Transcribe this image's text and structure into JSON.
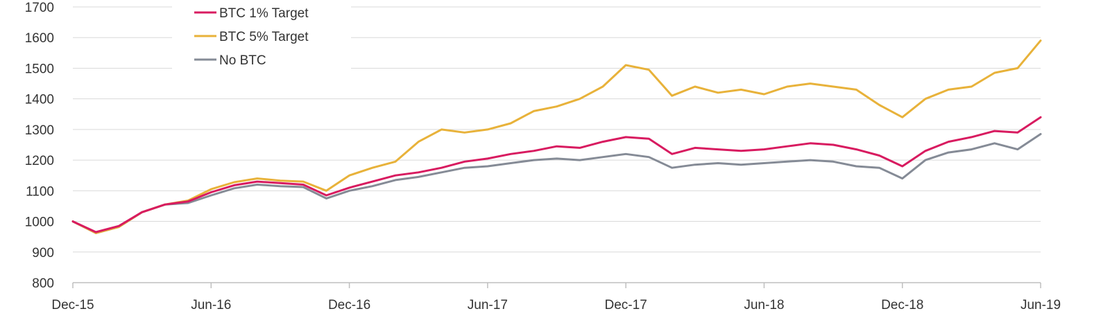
{
  "chart_data": {
    "type": "line",
    "title": "",
    "xlabel": "",
    "ylabel": "",
    "ylim": [
      800,
      1700
    ],
    "yticks": [
      800,
      900,
      1000,
      1100,
      1200,
      1300,
      1400,
      1500,
      1600,
      1700
    ],
    "xlim": [
      "2015-12",
      "2019-06"
    ],
    "xtick_labels": [
      "Dec-15",
      "Jun-16",
      "Dec-16",
      "Jun-17",
      "Dec-17",
      "Jun-18",
      "Dec-18",
      "Jun-19"
    ],
    "grid": "horizontal",
    "legend_position": "top-left",
    "series": [
      {
        "name": "BTC 1% Target",
        "color": "#d81b60",
        "x": [
          "2015-12",
          "2016-01",
          "2016-02",
          "2016-03",
          "2016-04",
          "2016-05",
          "2016-06",
          "2016-07",
          "2016-08",
          "2016-09",
          "2016-10",
          "2016-11",
          "2016-12",
          "2017-01",
          "2017-02",
          "2017-03",
          "2017-04",
          "2017-05",
          "2017-06",
          "2017-07",
          "2017-08",
          "2017-09",
          "2017-10",
          "2017-11",
          "2017-12",
          "2018-01",
          "2018-02",
          "2018-03",
          "2018-04",
          "2018-05",
          "2018-06",
          "2018-07",
          "2018-08",
          "2018-09",
          "2018-10",
          "2018-11",
          "2018-12",
          "2019-01",
          "2019-02",
          "2019-03",
          "2019-04",
          "2019-05",
          "2019-06"
        ],
        "values": [
          1000,
          965,
          985,
          1030,
          1055,
          1065,
          1095,
          1118,
          1130,
          1125,
          1120,
          1085,
          1110,
          1130,
          1150,
          1160,
          1175,
          1195,
          1205,
          1220,
          1230,
          1245,
          1240,
          1260,
          1275,
          1270,
          1220,
          1240,
          1235,
          1230,
          1235,
          1245,
          1255,
          1250,
          1235,
          1215,
          1180,
          1230,
          1260,
          1275,
          1295,
          1290,
          1340
        ]
      },
      {
        "name": "BTC 5% Target",
        "color": "#e8b23a",
        "x": [
          "2015-12",
          "2016-01",
          "2016-02",
          "2016-03",
          "2016-04",
          "2016-05",
          "2016-06",
          "2016-07",
          "2016-08",
          "2016-09",
          "2016-10",
          "2016-11",
          "2016-12",
          "2017-01",
          "2017-02",
          "2017-03",
          "2017-04",
          "2017-05",
          "2017-06",
          "2017-07",
          "2017-08",
          "2017-09",
          "2017-10",
          "2017-11",
          "2017-12",
          "2018-01",
          "2018-02",
          "2018-03",
          "2018-04",
          "2018-05",
          "2018-06",
          "2018-07",
          "2018-08",
          "2018-09",
          "2018-10",
          "2018-11",
          "2018-12",
          "2019-01",
          "2019-02",
          "2019-03",
          "2019-04",
          "2019-05",
          "2019-06"
        ],
        "values": [
          1000,
          962,
          982,
          1030,
          1055,
          1068,
          1105,
          1128,
          1140,
          1133,
          1130,
          1100,
          1150,
          1175,
          1195,
          1260,
          1300,
          1290,
          1300,
          1320,
          1360,
          1375,
          1400,
          1440,
          1510,
          1495,
          1410,
          1440,
          1420,
          1430,
          1415,
          1440,
          1450,
          1440,
          1430,
          1380,
          1340,
          1400,
          1430,
          1440,
          1485,
          1500,
          1590
        ]
      },
      {
        "name": "No BTC",
        "color": "#858b96",
        "x": [
          "2015-12",
          "2016-01",
          "2016-02",
          "2016-03",
          "2016-04",
          "2016-05",
          "2016-06",
          "2016-07",
          "2016-08",
          "2016-09",
          "2016-10",
          "2016-11",
          "2016-12",
          "2017-01",
          "2017-02",
          "2017-03",
          "2017-04",
          "2017-05",
          "2017-06",
          "2017-07",
          "2017-08",
          "2017-09",
          "2017-10",
          "2017-11",
          "2017-12",
          "2018-01",
          "2018-02",
          "2018-03",
          "2018-04",
          "2018-05",
          "2018-06",
          "2018-07",
          "2018-08",
          "2018-09",
          "2018-10",
          "2018-11",
          "2018-12",
          "2019-01",
          "2019-02",
          "2019-03",
          "2019-04",
          "2019-05",
          "2019-06"
        ],
        "values": [
          1000,
          962,
          982,
          1030,
          1055,
          1060,
          1085,
          1108,
          1120,
          1115,
          1112,
          1075,
          1100,
          1115,
          1135,
          1145,
          1160,
          1175,
          1180,
          1190,
          1200,
          1205,
          1200,
          1210,
          1220,
          1210,
          1175,
          1185,
          1190,
          1185,
          1190,
          1195,
          1200,
          1195,
          1180,
          1175,
          1140,
          1200,
          1225,
          1235,
          1255,
          1235,
          1285
        ]
      }
    ]
  }
}
